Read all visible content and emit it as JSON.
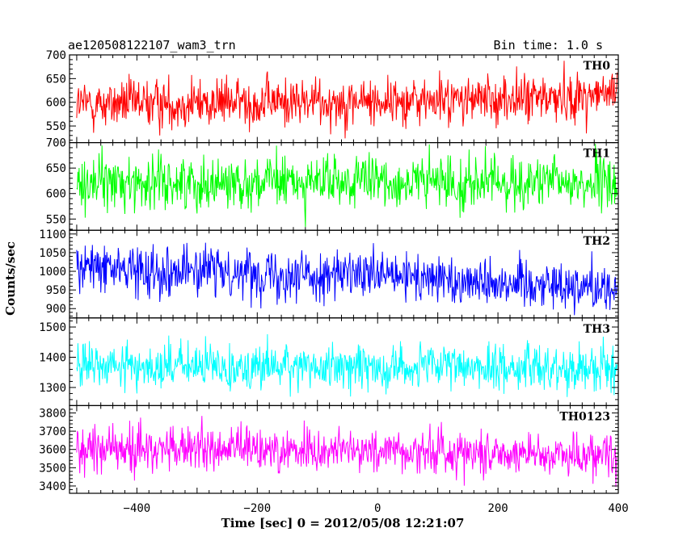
{
  "header": {
    "title": "ae120508122107_wam3_trn",
    "bin_time": "Bin time: 1.0 s"
  },
  "chart_data": {
    "type": "line",
    "title": "ae120508122107_wam3_trn",
    "xlabel": "Time [sec] 0 = 2012/05/08 12:21:07",
    "ylabel": "Counts/sec",
    "xlim": [
      -512,
      400
    ],
    "x_ticks": [
      -400,
      -200,
      0,
      200,
      400
    ],
    "grid": false,
    "series": [
      {
        "name": "TH0",
        "color": "#ff0000",
        "ylim": [
          515,
          700
        ],
        "y_ticks": [
          550,
          600,
          650,
          700
        ],
        "mean_trend": [
          [
            -500,
            595
          ],
          [
            -250,
            600
          ],
          [
            0,
            602
          ],
          [
            250,
            607
          ],
          [
            400,
            618
          ]
        ],
        "noise_sd": 26
      },
      {
        "name": "TH1",
        "color": "#00ff00",
        "ylim": [
          528,
          700
        ],
        "y_ticks": [
          550,
          600,
          650,
          700
        ],
        "mean_trend": [
          [
            -500,
            622
          ],
          [
            0,
            622
          ],
          [
            400,
            620
          ]
        ],
        "noise_sd": 26
      },
      {
        "name": "TH2",
        "color": "#0000ff",
        "ylim": [
          875,
          1110
        ],
        "y_ticks": [
          900,
          950,
          1000,
          1050,
          1100
        ],
        "mean_trend": [
          [
            -500,
            1010
          ],
          [
            -250,
            1000
          ],
          [
            0,
            985
          ],
          [
            250,
            970
          ],
          [
            400,
            955
          ]
        ],
        "noise_sd": 33
      },
      {
        "name": "TH3",
        "color": "#00ffff",
        "ylim": [
          1240,
          1530
        ],
        "y_ticks": [
          1300,
          1400,
          1500
        ],
        "mean_trend": [
          [
            -500,
            1370
          ],
          [
            0,
            1368
          ],
          [
            400,
            1365
          ]
        ],
        "noise_sd": 38
      },
      {
        "name": "TH0123",
        "color": "#ff00ff",
        "ylim": [
          3360,
          3840
        ],
        "y_ticks": [
          3400,
          3500,
          3600,
          3700,
          3800
        ],
        "mean_trend": [
          [
            -500,
            3605
          ],
          [
            0,
            3595
          ],
          [
            400,
            3570
          ]
        ],
        "noise_sd": 62
      }
    ]
  }
}
